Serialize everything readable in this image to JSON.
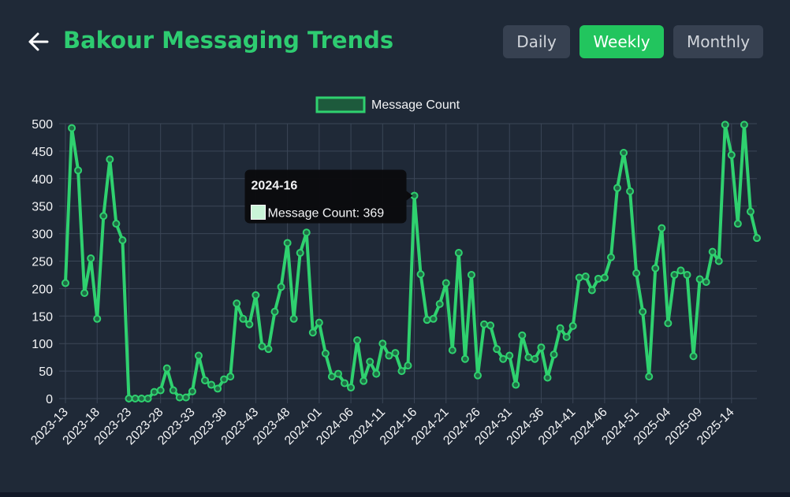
{
  "header": {
    "title": "Bakour Messaging Trends",
    "buttons": [
      "Daily",
      "Weekly",
      "Monthly"
    ],
    "active": "Weekly"
  },
  "chart_data": {
    "type": "line",
    "categories": [
      "2023-13",
      null,
      null,
      null,
      null,
      "2023-18",
      null,
      null,
      null,
      null,
      "2023-23",
      null,
      null,
      null,
      null,
      "2023-28",
      null,
      null,
      null,
      null,
      "2023-33",
      null,
      null,
      null,
      null,
      "2023-38",
      null,
      null,
      null,
      null,
      "2023-43",
      null,
      null,
      null,
      null,
      "2023-48",
      null,
      null,
      null,
      null,
      "2024-01",
      null,
      null,
      null,
      null,
      "2024-06",
      null,
      null,
      null,
      null,
      "2024-11",
      null,
      null,
      null,
      null,
      "2024-16",
      null,
      null,
      null,
      null,
      "2024-21",
      null,
      null,
      null,
      null,
      "2024-26",
      null,
      null,
      null,
      null,
      "2024-31",
      null,
      null,
      null,
      null,
      "2024-36",
      null,
      null,
      null,
      null,
      "2024-41",
      null,
      null,
      null,
      null,
      "2024-46",
      null,
      null,
      null,
      null,
      "2024-51",
      null,
      null,
      null,
      null,
      "2025-04",
      null,
      null,
      null,
      null,
      "2025-09",
      null,
      null,
      null,
      null,
      "2025-14",
      null,
      null,
      null,
      null
    ],
    "series": [
      {
        "name": "Message Count",
        "color": "#2fd16f",
        "values": [
          210,
          492,
          415,
          192,
          255,
          145,
          332,
          435,
          318,
          288,
          0,
          0,
          0,
          0,
          12,
          15,
          55,
          15,
          2,
          2,
          13,
          78,
          33,
          25,
          18,
          35,
          40,
          173,
          145,
          135,
          188,
          95,
          90,
          158,
          203,
          283,
          145,
          265,
          302,
          120,
          138,
          82,
          40,
          45,
          28,
          20,
          106,
          32,
          67,
          45,
          100,
          78,
          83,
          50,
          60,
          369,
          226,
          143,
          145,
          172,
          210,
          88,
          265,
          72,
          225,
          42,
          135,
          133,
          90,
          72,
          78,
          25,
          115,
          75,
          72,
          93,
          38,
          80,
          128,
          112,
          132,
          220,
          222,
          197,
          218,
          220,
          257,
          383,
          447,
          377,
          228,
          158,
          40,
          237,
          310,
          137,
          225,
          233,
          225,
          77,
          217,
          212,
          267,
          250,
          498,
          443,
          318,
          498,
          340,
          292
        ]
      }
    ],
    "ylim": [
      0,
      500
    ],
    "yticks": [
      0,
      50,
      100,
      150,
      200,
      250,
      300,
      350,
      400,
      450,
      500
    ],
    "grid": true,
    "legend": "top",
    "tooltip": {
      "index": 55,
      "title": "2024-16",
      "text": "Message Count: 369"
    }
  }
}
